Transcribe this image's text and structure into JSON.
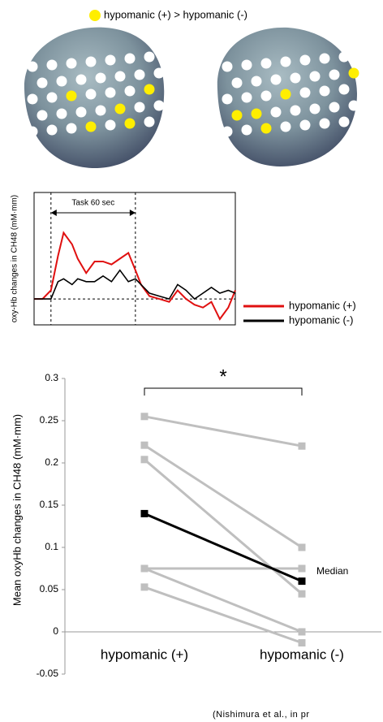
{
  "brain_legend": {
    "label": "hypomanic (+) > hypomanic (-)",
    "color": "#ffee00"
  },
  "chart_data": [
    {
      "type": "line",
      "y_label": "oxy-Hb changes in CH48 (mM·mm)",
      "annotation": "Task 60 sec",
      "vlines": [
        0,
        60
      ],
      "x": [
        -12,
        -6,
        0,
        5,
        9,
        15,
        19,
        25,
        31,
        37,
        43,
        49,
        55,
        60,
        64,
        70,
        77,
        84,
        90,
        96,
        102,
        108,
        114,
        120,
        126,
        131
      ],
      "xlim": [
        -12,
        131
      ],
      "ylim": [
        -0.09,
        0.37
      ],
      "series": [
        {
          "name": "hypomanic (+)",
          "color": "#e01010",
          "values": [
            0,
            0,
            0.03,
            0.15,
            0.23,
            0.19,
            0.14,
            0.09,
            0.13,
            0.13,
            0.12,
            0.14,
            0.16,
            0.1,
            0.05,
            0.01,
            0,
            -0.01,
            0.03,
            0,
            -0.02,
            -0.03,
            -0.01,
            -0.07,
            -0.03,
            0.03
          ]
        },
        {
          "name": "hypomanic (-)",
          "color": "#000000",
          "values": [
            0,
            0,
            0,
            0.06,
            0.07,
            0.05,
            0.07,
            0.06,
            0.06,
            0.08,
            0.06,
            0.1,
            0.06,
            0.07,
            0.05,
            0.02,
            0.01,
            0,
            0.05,
            0.03,
            0,
            0.02,
            0.04,
            0.02,
            0.03,
            0.02
          ]
        }
      ]
    },
    {
      "type": "line",
      "y_label": "Mean oxyHb changes in CH48 (mM·mm)",
      "categories": [
        "hypomanic (+)",
        "hypomanic (-)"
      ],
      "annotation": "*",
      "ylim": [
        -0.05,
        0.3
      ],
      "yticks": [
        -0.05,
        0,
        0.05,
        0.1,
        0.15,
        0.2,
        0.25,
        0.3
      ],
      "series": [
        {
          "color": "#bfbfbf",
          "values": [
            0.255,
            0.22
          ]
        },
        {
          "color": "#bfbfbf",
          "values": [
            0.221,
            0.1
          ]
        },
        {
          "color": "#bfbfbf",
          "values": [
            0.204,
            0.045
          ]
        },
        {
          "color": "#bfbfbf",
          "values": [
            0.075,
            0.075
          ]
        },
        {
          "color": "#bfbfbf",
          "values": [
            0.075,
            0
          ]
        },
        {
          "color": "#bfbfbf",
          "values": [
            0.053,
            -0.013
          ]
        },
        {
          "name": "Median",
          "color": "#000000",
          "values": [
            0.14,
            0.06
          ]
        }
      ]
    }
  ],
  "citation": "(Nishimura et al., in pr"
}
